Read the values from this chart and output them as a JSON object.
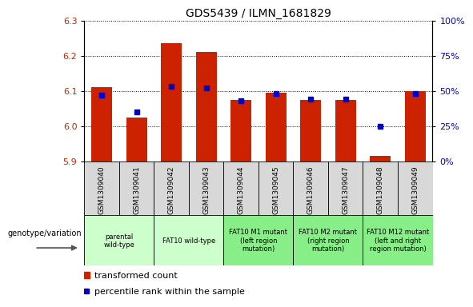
{
  "title": "GDS5439 / ILMN_1681829",
  "samples": [
    "GSM1309040",
    "GSM1309041",
    "GSM1309042",
    "GSM1309043",
    "GSM1309044",
    "GSM1309045",
    "GSM1309046",
    "GSM1309047",
    "GSM1309048",
    "GSM1309049"
  ],
  "red_values": [
    6.11,
    6.025,
    6.235,
    6.21,
    6.075,
    6.095,
    6.075,
    6.075,
    5.915,
    6.1
  ],
  "blue_values_pct": [
    47,
    35,
    53,
    52,
    43,
    48,
    44,
    44,
    25,
    48
  ],
  "ylim_left": [
    5.9,
    6.3
  ],
  "ylim_right": [
    0,
    100
  ],
  "yticks_left": [
    5.9,
    6.0,
    6.1,
    6.2,
    6.3
  ],
  "yticks_right": [
    0,
    25,
    50,
    75,
    100
  ],
  "left_color": "#cc2200",
  "right_color": "#0000cc",
  "genotype_groups": [
    {
      "label": "parental\nwild-type",
      "span": 2,
      "color": "#ccffcc"
    },
    {
      "label": "FAT10 wild-type",
      "span": 2,
      "color": "#ccffcc"
    },
    {
      "label": "FAT10 M1 mutant\n(left region\nmutation)",
      "span": 2,
      "color": "#88ee88"
    },
    {
      "label": "FAT10 M2 mutant\n(right region\nmutation)",
      "span": 2,
      "color": "#88ee88"
    },
    {
      "label": "FAT10 M12 mutant\n(left and right\nregion mutation)",
      "span": 2,
      "color": "#88ee88"
    }
  ],
  "legend_red": "transformed count",
  "legend_blue": "percentile rank within the sample",
  "genotype_label": "genotype/variation",
  "bar_width": 0.6,
  "base_value": 5.9,
  "sample_cell_color": "#d8d8d8",
  "grid_color": "black",
  "title_fontsize": 10
}
